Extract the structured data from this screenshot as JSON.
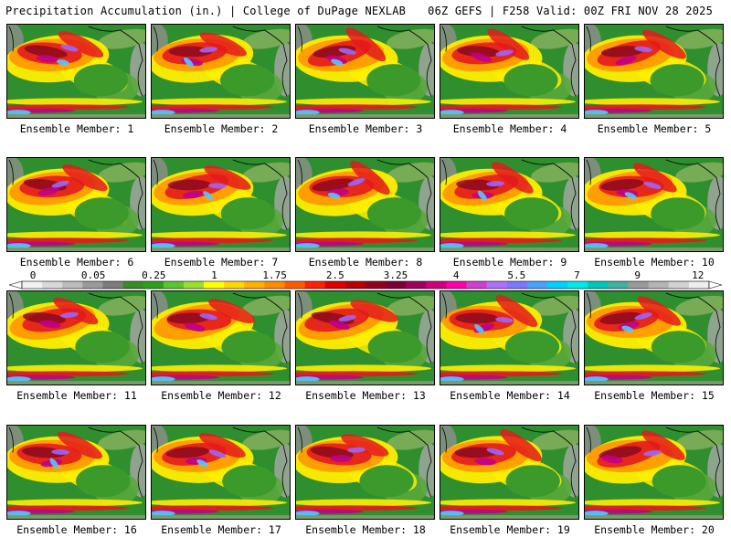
{
  "header": {
    "left_title": "Precipitation Accumulation (in.) | College of DuPage NEXLAB",
    "right_title": "06Z GEFS | F258 Valid: 00Z FRI NOV 28 2025"
  },
  "panels": [
    {
      "label": "Ensemble Member: 1"
    },
    {
      "label": "Ensemble Member: 2"
    },
    {
      "label": "Ensemble Member: 3"
    },
    {
      "label": "Ensemble Member: 4"
    },
    {
      "label": "Ensemble Member: 5"
    },
    {
      "label": "Ensemble Member: 6"
    },
    {
      "label": "Ensemble Member: 7"
    },
    {
      "label": "Ensemble Member: 8"
    },
    {
      "label": "Ensemble Member: 9"
    },
    {
      "label": "Ensemble Member: 10"
    },
    {
      "label": "Ensemble Member: 11"
    },
    {
      "label": "Ensemble Member: 12"
    },
    {
      "label": "Ensemble Member: 13"
    },
    {
      "label": "Ensemble Member: 14"
    },
    {
      "label": "Ensemble Member: 15"
    },
    {
      "label": "Ensemble Member: 16"
    },
    {
      "label": "Ensemble Member: 17"
    },
    {
      "label": "Ensemble Member: 18"
    },
    {
      "label": "Ensemble Member: 19"
    },
    {
      "label": "Ensemble Member: 20"
    }
  ],
  "colorbar": {
    "tick_labels": [
      "0",
      "0.05",
      "0.25",
      "1",
      "1.75",
      "2.5",
      "3.25",
      "4",
      "5.5",
      "7",
      "9",
      "12"
    ],
    "colors": [
      "#f2f2f2",
      "#d8d8d8",
      "#bcbcbc",
      "#9a9a9a",
      "#7c7c7c",
      "#3a8a2a",
      "#2e9e1e",
      "#58c62c",
      "#9ade2e",
      "#ffff00",
      "#ffd700",
      "#ffb000",
      "#ff8c00",
      "#ff5a00",
      "#ff2200",
      "#e00000",
      "#b80000",
      "#900018",
      "#7a0032",
      "#a0005a",
      "#d0007a",
      "#ff00aa",
      "#d040d0",
      "#b070ff",
      "#7a78ff",
      "#4aa0ff",
      "#00d0ff",
      "#00e8e8",
      "#00c8b8",
      "#40b0a0",
      "#9a9a9a",
      "#b4b4b4",
      "#d2d2d2",
      "#eeeeee"
    ]
  },
  "palette": {
    "ocean_green": "#2f8f2f",
    "land_green": "#5aa83c",
    "yellow": "#ffee00",
    "orange": "#ff9a00",
    "red": "#e41a1c",
    "maroon": "#8b0a1e",
    "magenta": "#c0008a",
    "purple": "#9a66ff",
    "cyan": "#55c8ff",
    "gray": "#9a9a9a"
  }
}
